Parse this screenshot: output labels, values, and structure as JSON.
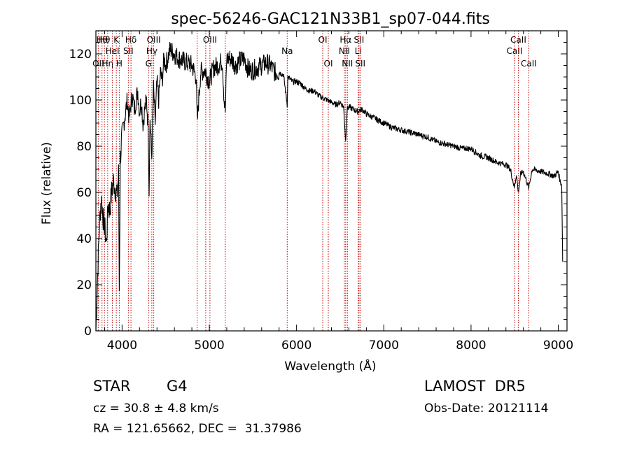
{
  "chart_data": {
    "type": "line",
    "title": "spec-56246-GAC121N33B1_sp07-044.fits",
    "xlabel": "Wavelength (Å)",
    "ylabel": "Flux (relative)",
    "xlim": [
      3700,
      9100
    ],
    "ylim": [
      0,
      130
    ],
    "xticks": [
      4000,
      5000,
      6000,
      7000,
      8000,
      9000
    ],
    "yticks": [
      0,
      20,
      40,
      60,
      80,
      100,
      120
    ],
    "series": [
      {
        "x": [
          3700,
          3720,
          3740,
          3760,
          3780,
          3800,
          3820,
          3840,
          3860,
          3880,
          3900,
          3920,
          3940,
          3960,
          3968,
          3980,
          4000,
          4020,
          4040,
          4060,
          4080,
          4100,
          4120,
          4140,
          4160,
          4180,
          4200,
          4220,
          4240,
          4260,
          4280,
          4300,
          4310,
          4320,
          4340,
          4360,
          4380,
          4400,
          4420,
          4440,
          4460,
          4480,
          4500,
          4550,
          4600,
          4650,
          4700,
          4750,
          4800,
          4850,
          4861,
          4900,
          4950,
          5000,
          5050,
          5100,
          5150,
          5170,
          5183,
          5200,
          5250,
          5300,
          5350,
          5400,
          5450,
          5500,
          5550,
          5600,
          5650,
          5700,
          5750,
          5800,
          5850,
          5893,
          5900,
          5950,
          6000,
          6050,
          6100,
          6150,
          6200,
          6250,
          6300,
          6350,
          6400,
          6450,
          6500,
          6540,
          6563,
          6580,
          6600,
          6650,
          6700,
          6750,
          6800,
          6850,
          6900,
          6950,
          7000,
          7100,
          7200,
          7300,
          7400,
          7500,
          7600,
          7700,
          7800,
          7900,
          8000,
          8100,
          8200,
          8300,
          8400,
          8450,
          8498,
          8520,
          8542,
          8570,
          8600,
          8662,
          8700,
          8800,
          8900,
          8950,
          9000,
          9020,
          9040,
          9050
        ],
        "values": [
          0,
          25,
          45,
          58,
          50,
          45,
          38,
          55,
          52,
          60,
          65,
          62,
          58,
          68,
          18,
          75,
          85,
          90,
          95,
          100,
          92,
          98,
          102,
          96,
          100,
          104,
          95,
          100,
          90,
          96,
          100,
          88,
          60,
          92,
          75,
          105,
          90,
          108,
          100,
          112,
          108,
          118,
          115,
          122,
          120,
          118,
          117,
          116,
          115,
          110,
          90,
          112,
          113,
          108,
          114,
          115,
          117,
          100,
          95,
          118,
          118,
          115,
          117,
          118,
          113,
          113,
          114,
          115,
          116,
          115,
          112,
          112,
          111,
          98,
          110,
          108,
          108,
          107,
          105,
          104,
          104,
          102,
          101,
          100,
          99,
          98,
          99,
          97,
          82,
          96,
          97,
          96,
          95,
          96,
          94,
          93,
          92,
          91,
          90,
          88,
          87,
          86,
          85,
          84,
          82,
          81,
          80,
          79,
          79,
          76,
          75,
          73,
          72,
          70,
          62,
          68,
          60,
          68,
          69,
          62,
          70,
          69,
          68,
          67,
          69,
          65,
          63,
          30
        ]
      }
    ],
    "lines": [
      {
        "wl": 3727,
        "row": 2,
        "label": "OII"
      },
      {
        "wl": 3770,
        "row": 0,
        "label": "Hθ"
      },
      {
        "wl": 3798,
        "row": 0,
        "label": "Hθ"
      },
      {
        "wl": 3835,
        "row": 2,
        "label": "Hη"
      },
      {
        "wl": 3889,
        "row": 1,
        "label": "HeI"
      },
      {
        "wl": 3934,
        "row": 0,
        "label": "K"
      },
      {
        "wl": 3968,
        "row": 2,
        "label": "H"
      },
      {
        "wl": 4072,
        "row": 1,
        "label": "SII"
      },
      {
        "wl": 4102,
        "row": 0,
        "label": "Hδ"
      },
      {
        "wl": 4304,
        "row": 2,
        "label": "G"
      },
      {
        "wl": 4341,
        "row": 1,
        "label": "Hγ"
      },
      {
        "wl": 4363,
        "row": 0,
        "label": "OIII"
      },
      {
        "wl": 4861,
        "row": 3,
        "label": ""
      },
      {
        "wl": 4959,
        "row": 1,
        "label": ""
      },
      {
        "wl": 5007,
        "row": 0,
        "label": "OIII"
      },
      {
        "wl": 5183,
        "row": 3,
        "label": ""
      },
      {
        "wl": 5893,
        "row": 1,
        "label": "Na"
      },
      {
        "wl": 6300,
        "row": 0,
        "label": "OI"
      },
      {
        "wl": 6364,
        "row": 2,
        "label": "OI"
      },
      {
        "wl": 6548,
        "row": 1,
        "label": "NII"
      },
      {
        "wl": 6563,
        "row": 0,
        "label": "Hα"
      },
      {
        "wl": 6583,
        "row": 2,
        "label": "NII"
      },
      {
        "wl": 6707,
        "row": 1,
        "label": "Li"
      },
      {
        "wl": 6716,
        "row": 0,
        "label": "SII"
      },
      {
        "wl": 6731,
        "row": 2,
        "label": "SII"
      },
      {
        "wl": 8498,
        "row": 1,
        "label": "CaII"
      },
      {
        "wl": 8542,
        "row": 0,
        "label": "CaII"
      },
      {
        "wl": 8662,
        "row": 2,
        "label": "CaII"
      }
    ]
  },
  "footer": {
    "object_type": "STAR",
    "subclass": "G4",
    "cz": "cz = 30.8 ± 4.8 km/s",
    "radec": "RA = 121.65662, DEC =  31.37986",
    "survey": "LAMOST  DR5",
    "obs_date": "Obs-Date: 20121114"
  },
  "colors": {
    "line_marker": "#c00000",
    "spectrum": "#000000"
  }
}
